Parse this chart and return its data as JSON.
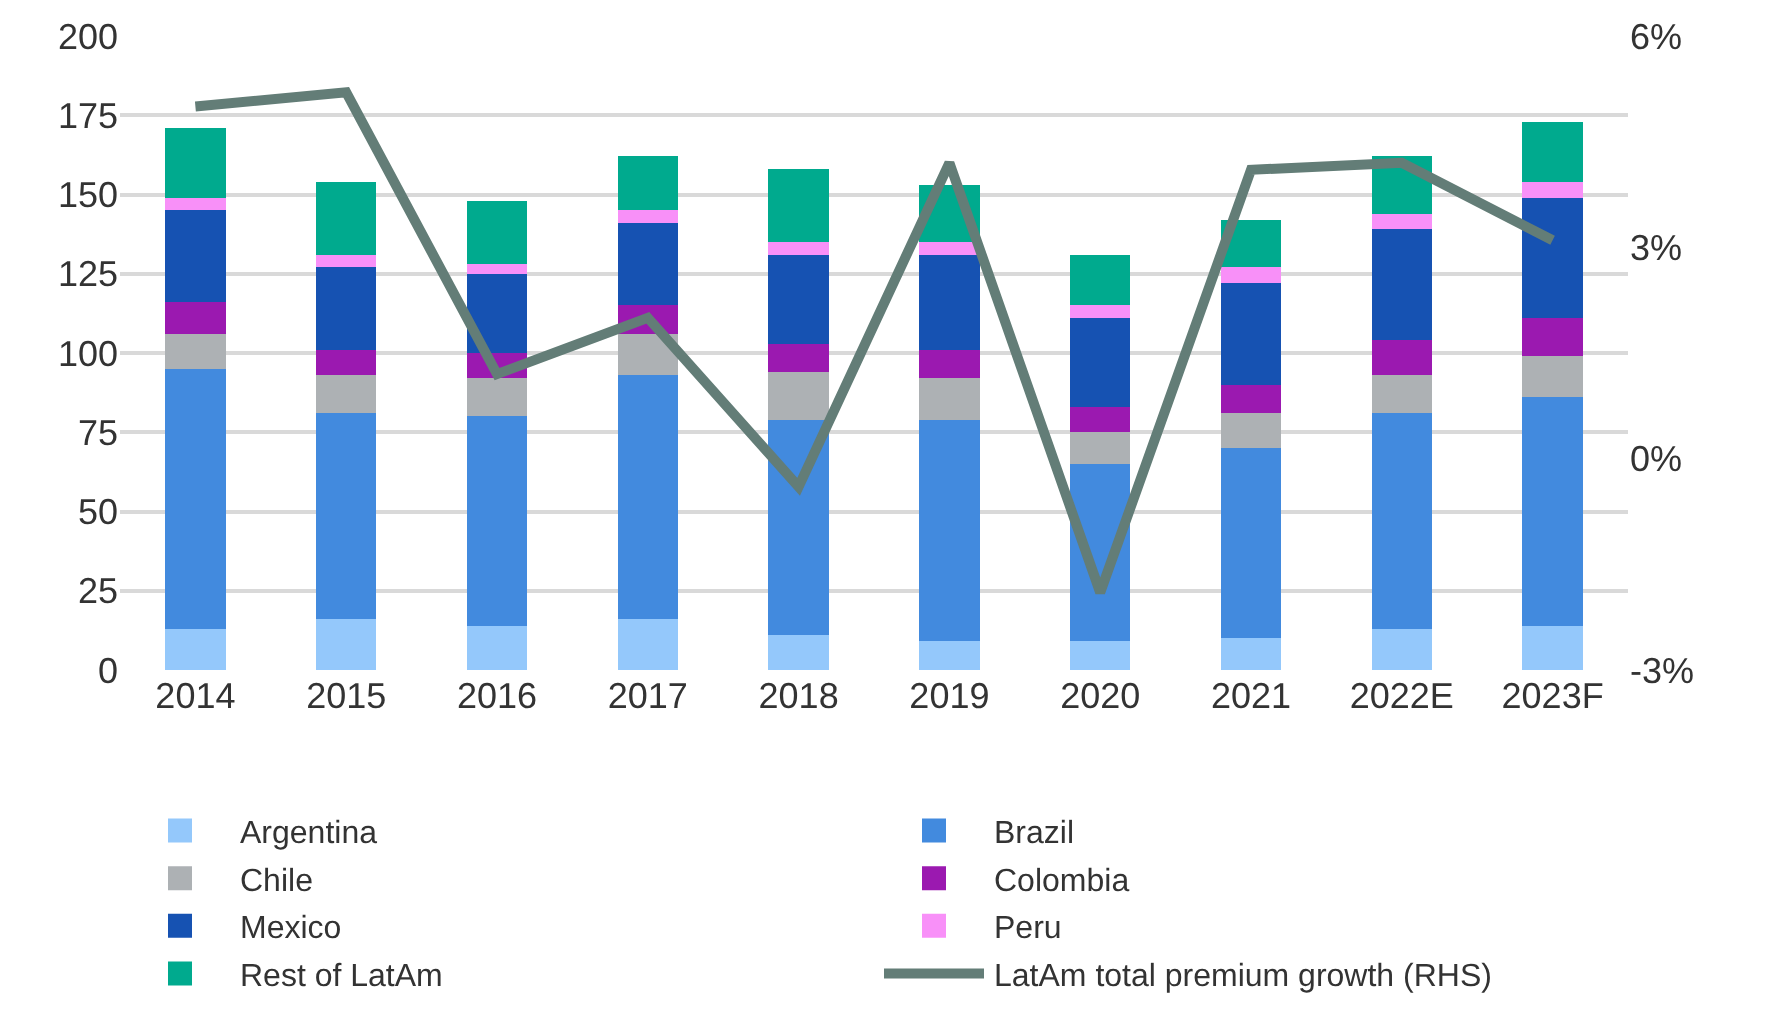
{
  "chart_data": {
    "type": "bar",
    "stacked": true,
    "categories": [
      "2014",
      "2015",
      "2016",
      "2017",
      "2018",
      "2019",
      "2020",
      "2021",
      "2022E",
      "2023F"
    ],
    "series": [
      {
        "name": "Argentina",
        "color": "#94c8fb",
        "values": [
          13,
          16,
          14,
          16,
          11,
          9,
          9,
          10,
          13,
          14
        ]
      },
      {
        "name": "Brazil",
        "color": "#428ade",
        "values": [
          82,
          65,
          66,
          77,
          68,
          70,
          56,
          60,
          68,
          72
        ]
      },
      {
        "name": "Chile",
        "color": "#adb1b4",
        "values": [
          11,
          12,
          12,
          13,
          15,
          13,
          10,
          11,
          12,
          13
        ]
      },
      {
        "name": "Colombia",
        "color": "#9b19b0",
        "values": [
          10,
          8,
          8,
          9,
          9,
          9,
          8,
          9,
          11,
          12
        ]
      },
      {
        "name": "Mexico",
        "color": "#1652b2",
        "values": [
          29,
          26,
          25,
          26,
          28,
          30,
          28,
          32,
          35,
          38
        ]
      },
      {
        "name": "Peru",
        "color": "#f890f8",
        "values": [
          4,
          4,
          3,
          4,
          4,
          4,
          4,
          5,
          5,
          5
        ]
      },
      {
        "name": "Rest of LatAm",
        "color": "#00aa8e",
        "values": [
          22,
          23,
          20,
          17,
          23,
          18,
          16,
          15,
          18,
          19
        ]
      },
      {
        "name": "LatAm total premium growth (RHS)",
        "type": "line",
        "axis": "y2",
        "color": "#637d77",
        "marker": "none",
        "line_style": "solid",
        "values": [
          5.0,
          5.2,
          1.2,
          2.0,
          -0.4,
          4.2,
          -1.9,
          4.1,
          4.2,
          3.1
        ]
      }
    ],
    "ylim": [
      0,
      200
    ],
    "yticks": [
      0,
      25,
      50,
      75,
      100,
      125,
      150,
      175,
      200
    ],
    "y2lim": [
      -3,
      6
    ],
    "y2ticks": [
      {
        "value": -3,
        "label": "-3%"
      },
      {
        "value": 0,
        "label": "0%"
      },
      {
        "value": 3,
        "label": "3%"
      },
      {
        "value": 6,
        "label": "6%"
      }
    ],
    "grid": "y",
    "legend": "bottom"
  }
}
